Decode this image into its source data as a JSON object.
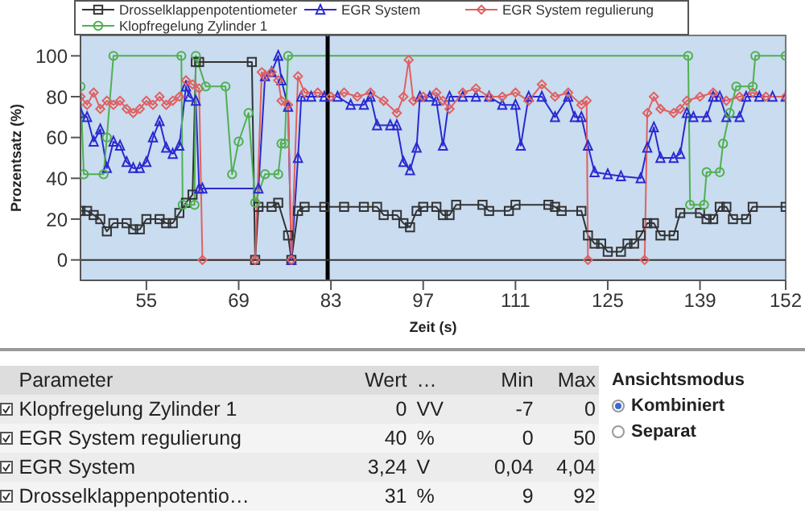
{
  "chart_data": {
    "type": "line",
    "xlabel": "Zeit (s)",
    "ylabel": "Prozentsatz (%)",
    "xlim": [
      45,
      152
    ],
    "xticks": [
      55,
      69,
      83,
      97,
      111,
      125,
      139,
      152
    ],
    "ylim": [
      -10,
      110
    ],
    "yticks": [
      0,
      20,
      40,
      60,
      80,
      100
    ],
    "grid": false,
    "legend": "top",
    "line_style": "solid",
    "ref_lines": [
      {
        "axis": "x",
        "value": 82.5,
        "color": "#000000"
      },
      {
        "axis": "y",
        "value": 0,
        "color": "#333333"
      }
    ],
    "series": [
      {
        "name": "Drosselklappenpotentiometer",
        "color": "#333333",
        "marker": "square",
        "x": [
          45,
          46,
          47,
          48,
          49,
          50,
          52,
          53,
          54,
          55,
          57,
          58,
          59,
          60,
          61,
          62,
          62.5,
          63,
          71,
          71.5,
          72,
          74,
          75,
          76.5,
          77,
          78,
          79,
          82,
          85,
          88,
          90,
          91,
          93,
          94,
          95,
          96,
          97,
          99,
          100,
          101,
          102,
          106,
          107,
          110,
          111,
          116,
          117,
          118,
          121,
          122,
          123,
          124,
          125,
          127,
          128,
          129,
          130,
          131,
          132,
          133,
          135,
          136,
          139,
          140,
          141,
          142,
          143,
          144,
          146,
          147,
          152
        ],
        "values": [
          24,
          24,
          22,
          20,
          14,
          18,
          18,
          15,
          15,
          20,
          20,
          18,
          18,
          23,
          28,
          32,
          97,
          97,
          97,
          0,
          26,
          26,
          28,
          12,
          0,
          24,
          26,
          26,
          26,
          26,
          26,
          22,
          22,
          18,
          16,
          24,
          26,
          26,
          22,
          22,
          27,
          27,
          24,
          24,
          27,
          27,
          26,
          24,
          24,
          12,
          8,
          8,
          4,
          4,
          8,
          8,
          12,
          18,
          18,
          12,
          12,
          23,
          23,
          20,
          20,
          26,
          26,
          20,
          20,
          26,
          26
        ]
      },
      {
        "name": "EGR System",
        "color": "#2a2ad0",
        "marker": "triangle",
        "x": [
          45,
          46,
          47,
          48,
          49,
          50,
          51,
          52,
          53,
          54,
          55,
          56,
          57,
          58,
          59,
          60,
          61,
          61.5,
          62.5,
          63,
          63.5,
          72,
          73,
          74,
          75,
          75.5,
          76.5,
          77,
          78,
          78.5,
          80,
          82,
          84,
          86,
          88,
          89,
          90,
          92,
          93,
          94,
          95,
          96,
          96.5,
          98,
          99,
          100,
          101,
          103,
          105,
          107,
          109,
          111,
          111.8,
          113,
          115,
          117,
          119,
          120,
          121,
          122,
          123,
          125,
          127,
          130,
          131,
          132,
          133,
          135,
          136,
          137,
          138,
          140,
          141,
          142,
          143,
          145,
          146,
          148,
          150,
          152
        ],
        "values": [
          72,
          70,
          58,
          64,
          45,
          58,
          56,
          48,
          45,
          45,
          48,
          60,
          68,
          55,
          52,
          56,
          85,
          80,
          78,
          35,
          35,
          35,
          90,
          92,
          100,
          88,
          75,
          0,
          50,
          80,
          80,
          80,
          80,
          76,
          76,
          80,
          66,
          66,
          66,
          48,
          44,
          55,
          80,
          80,
          78,
          56,
          80,
          80,
          80,
          80,
          76,
          76,
          56,
          80,
          80,
          70,
          80,
          70,
          70,
          56,
          43,
          42,
          41,
          40,
          55,
          65,
          50,
          50,
          52,
          72,
          70,
          70,
          80,
          80,
          70,
          70,
          80,
          80,
          80,
          80
        ]
      },
      {
        "name": "EGR System regulierung",
        "color": "#e06060",
        "marker": "diamond",
        "x": [
          45,
          46,
          47,
          48,
          49,
          50,
          51,
          52,
          53,
          54,
          55,
          56,
          57,
          58,
          59,
          60,
          61,
          62,
          63,
          63.5,
          71.5,
          72.5,
          73,
          74,
          75,
          75.5,
          76.5,
          77,
          78,
          79,
          81,
          83,
          85,
          87,
          89,
          91,
          93,
          94,
          94.8,
          95.5,
          97,
          99,
          100,
          101,
          103,
          105,
          107,
          109,
          111,
          113,
          115,
          117,
          119,
          121,
          121.8,
          122,
          130.6,
          131,
          132,
          133,
          135,
          136,
          137,
          139,
          141,
          143,
          145,
          147,
          149,
          152
        ],
        "values": [
          80,
          76,
          82,
          74,
          78,
          76,
          78,
          74,
          72,
          74,
          78,
          76,
          80,
          76,
          78,
          80,
          88,
          86,
          84,
          0,
          0,
          92,
          90,
          92,
          88,
          78,
          76,
          0,
          90,
          82,
          82,
          80,
          82,
          80,
          82,
          78,
          72,
          80,
          98,
          78,
          80,
          82,
          78,
          74,
          82,
          84,
          80,
          80,
          82,
          78,
          86,
          80,
          82,
          76,
          78,
          0,
          0,
          72,
          80,
          74,
          72,
          74,
          78,
          80,
          82,
          78,
          80,
          82,
          80,
          80
        ]
      },
      {
        "name": "Klopfregelung Zylinder 1",
        "color": "#50b050",
        "marker": "circle",
        "x": [
          45,
          45.5,
          48.5,
          49,
          50,
          60.3,
          60.5,
          62.3,
          62.5,
          64,
          67,
          68,
          69,
          70.5,
          71.5,
          73,
          75,
          75.5,
          76,
          76.5,
          137.2,
          137.5,
          139.6,
          140,
          142,
          142.5,
          143.5,
          144.5,
          147,
          147.4,
          152
        ],
        "values": [
          85,
          42,
          42,
          60,
          100,
          100,
          27,
          27,
          100,
          85,
          85,
          42,
          58,
          72,
          28,
          42,
          42,
          57,
          57,
          100,
          100,
          27,
          27,
          43,
          43,
          57,
          72,
          85,
          85,
          100,
          100
        ]
      }
    ],
    "annotations": [
      "Parameter",
      "Wert",
      "…",
      "Min",
      "Max",
      "Klopfregelung Zylinder 1",
      "0",
      "VV",
      "-7",
      "0",
      "EGR System regulierung",
      "40",
      "%",
      "0",
      "50",
      "EGR System",
      "3,24",
      "V",
      "0,04",
      "4,04",
      "Drosselklappenpotentio…",
      "31",
      "%",
      "9",
      "92",
      "Ansichtsmodus",
      "Kombiniert",
      "Separat"
    ]
  }
}
